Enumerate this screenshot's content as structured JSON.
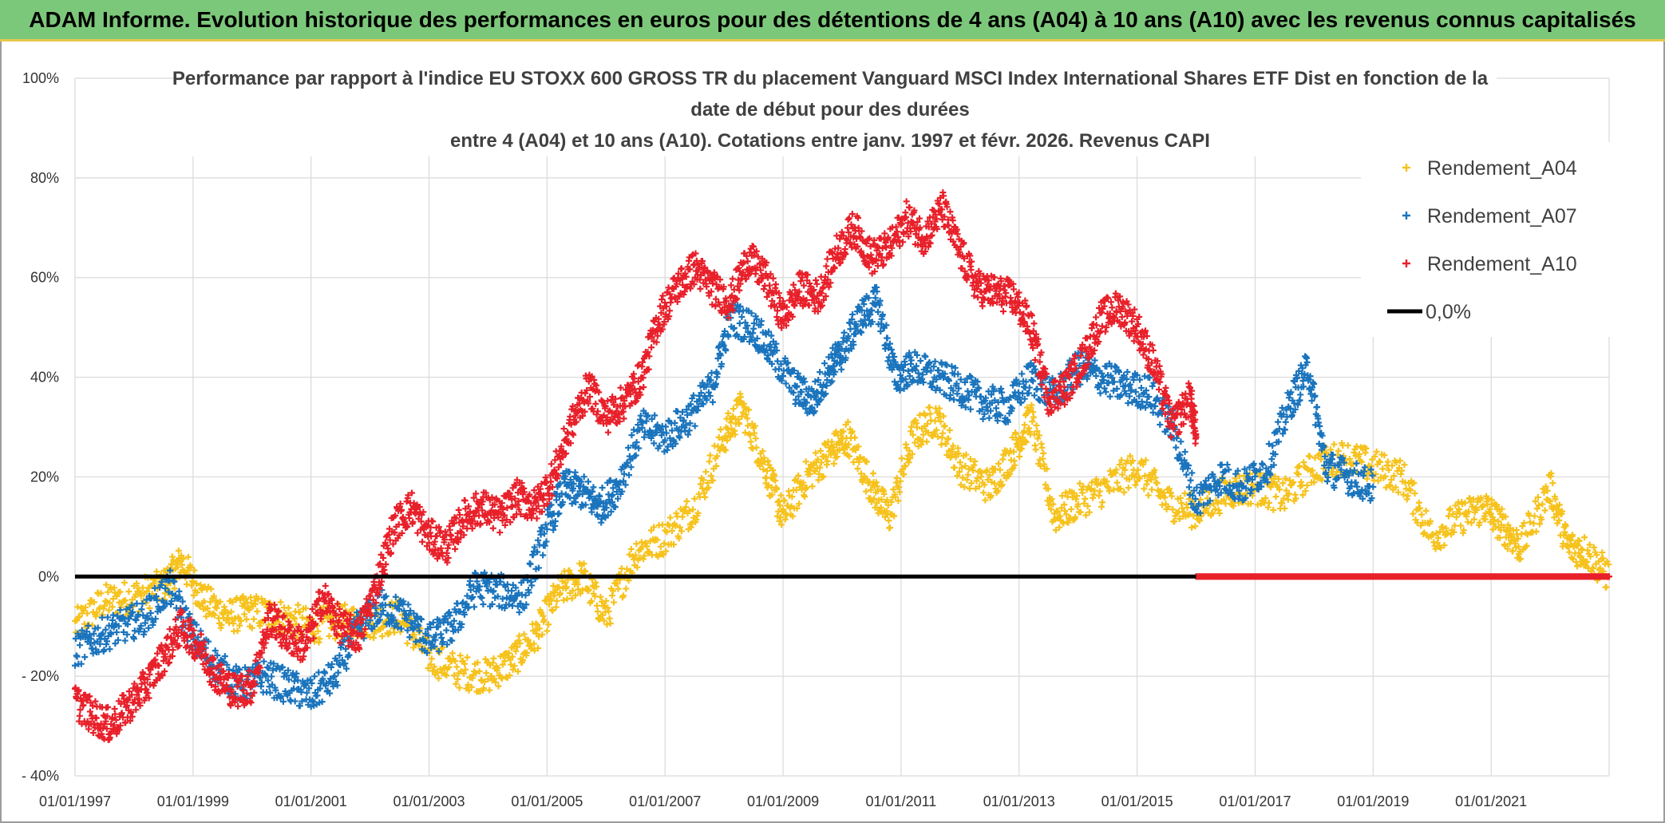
{
  "banner": {
    "title": "ADAM Informe. Evolution historique des performances en euros pour des détentions de 4 ans (A04) à 10 ans (A10) avec les revenus connus capitalisés"
  },
  "colors": {
    "a04": "#f6c21c",
    "a07": "#1a74bd",
    "a10": "#e8202a",
    "zero": "#000000",
    "grid": "#d9d9d9",
    "banner": "#7cc87a"
  },
  "chart_data": {
    "type": "scatter",
    "title_lines": [
      "Performance par rapport à l'indice EU STOXX 600 GROSS TR  du placement Vanguard MSCI Index International Shares ETF Dist en fonction de la",
      "date de début pour des durées",
      "entre 4 (A04) et 10 ans (A10). Cotations entre janv. 1997 et févr. 2026. Revenus CAPI"
    ],
    "xlim": [
      1997.0,
      2023.0
    ],
    "ylim": [
      -40,
      100
    ],
    "x_ticks": [
      {
        "value": 1997,
        "label": "01/01/1997"
      },
      {
        "value": 1999,
        "label": "01/01/1999"
      },
      {
        "value": 2001,
        "label": "01/01/2001"
      },
      {
        "value": 2003,
        "label": "01/01/2003"
      },
      {
        "value": 2005,
        "label": "01/01/2005"
      },
      {
        "value": 2007,
        "label": "01/01/2007"
      },
      {
        "value": 2009,
        "label": "01/01/2009"
      },
      {
        "value": 2011,
        "label": "01/01/2011"
      },
      {
        "value": 2013,
        "label": "01/01/2013"
      },
      {
        "value": 2015,
        "label": "01/01/2015"
      },
      {
        "value": 2017,
        "label": "01/01/2017"
      },
      {
        "value": 2019,
        "label": "01/01/2019"
      },
      {
        "value": 2021,
        "label": "01/01/2021"
      }
    ],
    "y_ticks": [
      {
        "value": 100,
        "label": "100%"
      },
      {
        "value": 80,
        "label": "80%"
      },
      {
        "value": 60,
        "label": "60%"
      },
      {
        "value": 40,
        "label": "40%"
      },
      {
        "value": 20,
        "label": "20%"
      },
      {
        "value": 0,
        "label": "0%"
      },
      {
        "value": -20,
        "label": "- 20%"
      },
      {
        "value": -40,
        "label": "- 40%"
      }
    ],
    "legend_position": "top-right",
    "legend": [
      {
        "name": "Rendement_A04",
        "key": "a04",
        "kind": "marker"
      },
      {
        "name": "Rendement_A07",
        "key": "a07",
        "kind": "marker"
      },
      {
        "name": "Rendement_A10",
        "key": "a10",
        "kind": "marker"
      },
      {
        "name": "0,0%",
        "key": "zero",
        "kind": "line"
      }
    ],
    "series": [
      {
        "name": "Rendement_A04",
        "key": "a04",
        "x": [
          1997.0,
          1997.5,
          1998.0,
          1998.5,
          1998.8,
          1999.2,
          1999.6,
          2000.0,
          2000.5,
          2001.0,
          2001.5,
          2002.0,
          2002.5,
          2003.0,
          2003.5,
          2004.0,
          2004.4,
          2004.8,
          2005.2,
          2005.6,
          2006.0,
          2006.5,
          2007.0,
          2007.5,
          2008.0,
          2008.3,
          2008.7,
          2009.0,
          2009.4,
          2009.8,
          2010.1,
          2010.5,
          2010.8,
          2011.2,
          2011.6,
          2012.0,
          2012.5,
          2012.9,
          2013.2,
          2013.6,
          2014.0,
          2014.5,
          2015.0,
          2015.5,
          2016.0,
          2016.5,
          2017.0,
          2017.5,
          2018.0,
          2018.5,
          2019.0,
          2019.5,
          2020.0,
          2020.5,
          2020.9,
          2021.2,
          2021.5,
          2022.0,
          2022.3,
          2022.6,
          2023.0
        ],
        "values": [
          -10,
          -5,
          -4,
          -2,
          3,
          -5,
          -8,
          -7,
          -8,
          -10,
          -9,
          -9,
          -8,
          -16,
          -19,
          -20,
          -17,
          -12,
          -3,
          0,
          -8,
          5,
          8,
          14,
          28,
          34,
          22,
          12,
          20,
          25,
          28,
          18,
          12,
          28,
          32,
          22,
          18,
          25,
          32,
          12,
          15,
          18,
          22,
          15,
          13,
          17,
          18,
          16,
          22,
          24,
          22,
          20,
          8,
          12,
          14,
          10,
          6,
          18,
          6,
          5,
          0
        ]
      },
      {
        "name": "Rendement_A07",
        "key": "a07",
        "x": [
          1997.0,
          1997.4,
          1997.8,
          1998.2,
          1998.6,
          1999.0,
          1999.4,
          1999.8,
          2000.2,
          2000.6,
          2001.0,
          2001.4,
          2001.8,
          2002.2,
          2002.6,
          2003.0,
          2003.4,
          2003.8,
          2004.2,
          2004.6,
          2005.0,
          2005.3,
          2005.6,
          2005.9,
          2006.2,
          2006.6,
          2007.0,
          2007.4,
          2007.8,
          2008.1,
          2008.5,
          2008.8,
          2009.2,
          2009.5,
          2009.8,
          2010.0,
          2010.3,
          2010.6,
          2010.9,
          2011.2,
          2011.6,
          2012.0,
          2012.4,
          2012.8,
          2013.2,
          2013.6,
          2014.0,
          2014.4,
          2014.8,
          2015.2,
          2015.6,
          2016.0,
          2016.4,
          2016.8,
          2017.2,
          2017.6,
          2017.9,
          2018.2,
          2018.6,
          2019.0
        ],
        "values": [
          -15,
          -12,
          -10,
          -8,
          -2,
          -12,
          -18,
          -22,
          -20,
          -22,
          -24,
          -20,
          -10,
          -6,
          -8,
          -13,
          -10,
          -2,
          -3,
          -4,
          10,
          18,
          17,
          14,
          18,
          30,
          28,
          32,
          38,
          52,
          50,
          45,
          38,
          35,
          42,
          45,
          52,
          55,
          40,
          42,
          40,
          38,
          35,
          34,
          40,
          36,
          42,
          40,
          38,
          37,
          30,
          15,
          20,
          18,
          22,
          35,
          42,
          22,
          20,
          18
        ]
      },
      {
        "name": "Rendement_A10",
        "key": "a10",
        "x": [
          1997.0,
          1997.3,
          1997.6,
          1997.9,
          1998.2,
          1998.5,
          1998.8,
          1999.1,
          1999.4,
          1999.7,
          2000.0,
          2000.3,
          2000.6,
          2000.9,
          2001.2,
          2001.5,
          2001.8,
          2002.1,
          2002.4,
          2002.7,
          2003.0,
          2003.3,
          2003.6,
          2003.9,
          2004.2,
          2004.5,
          2004.8,
          2005.1,
          2005.4,
          2005.7,
          2006.0,
          2006.3,
          2006.6,
          2006.9,
          2007.2,
          2007.5,
          2007.8,
          2008.1,
          2008.4,
          2008.7,
          2009.0,
          2009.3,
          2009.6,
          2009.9,
          2010.2,
          2010.5,
          2010.8,
          2011.1,
          2011.4,
          2011.7,
          2012.0,
          2012.3,
          2012.6,
          2012.9,
          2013.2,
          2013.5,
          2013.8,
          2014.1,
          2014.4,
          2014.7,
          2015.0,
          2015.3,
          2015.6,
          2015.9,
          2016.0
        ],
        "values": [
          -25,
          -28,
          -30,
          -26,
          -22,
          -16,
          -10,
          -14,
          -20,
          -23,
          -22,
          -8,
          -12,
          -14,
          -4,
          -10,
          -12,
          -2,
          10,
          14,
          8,
          6,
          12,
          14,
          12,
          16,
          14,
          20,
          30,
          38,
          32,
          35,
          40,
          52,
          58,
          62,
          58,
          55,
          64,
          60,
          52,
          58,
          56,
          65,
          70,
          64,
          66,
          72,
          68,
          74,
          65,
          58,
          57,
          56,
          50,
          36,
          38,
          44,
          52,
          54,
          50,
          42,
          30,
          36,
          28
        ]
      },
      {
        "name": "Rendement_A10_tail",
        "key": "a10",
        "x": [
          2016.0,
          2016.5,
          2017.0,
          2017.5,
          2018.0,
          2018.5,
          2019.0,
          2019.5,
          2020.0,
          2020.5,
          2021.0,
          2021.5,
          2022.0,
          2022.5,
          2023.0
        ],
        "values": [
          0,
          0,
          0,
          0,
          0,
          0,
          0,
          0,
          0,
          0,
          0,
          0,
          0,
          0,
          0
        ]
      }
    ],
    "zero_line": {
      "label": "0,0%",
      "value": 0
    }
  }
}
